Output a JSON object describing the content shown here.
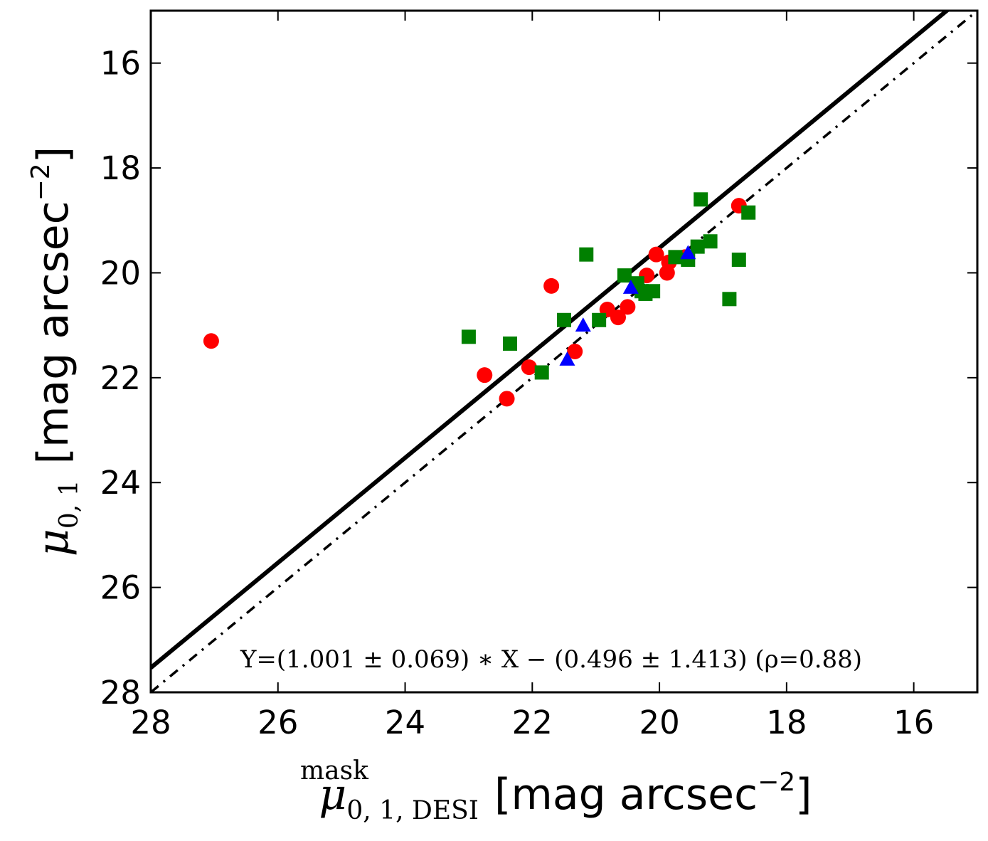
{
  "chart_data": {
    "type": "scatter",
    "xlim": [
      28,
      15
    ],
    "ylim": [
      28,
      15
    ],
    "x_inverted": true,
    "y_inverted": true,
    "x_ticks": [
      28,
      26,
      24,
      22,
      20,
      18,
      16
    ],
    "y_ticks": [
      16,
      18,
      20,
      22,
      24,
      26,
      28
    ],
    "xlabel": {
      "symbol": "μ",
      "subscript": "0, 1, DESI",
      "superscript": "mask",
      "unit_main": "[mag arcsec",
      "unit_exp": "−2",
      "unit_close": "]"
    },
    "ylabel": {
      "symbol": "μ",
      "subscript": "0, 1",
      "unit_main": "[mag arcsec",
      "unit_exp": "−2",
      "unit_close": "]"
    },
    "series": [
      {
        "marker": "circle",
        "color": "#ff0000",
        "points": [
          [
            27.05,
            21.3
          ],
          [
            22.75,
            21.95
          ],
          [
            22.4,
            22.4
          ],
          [
            22.05,
            21.8
          ],
          [
            21.7,
            20.25
          ],
          [
            21.33,
            21.5
          ],
          [
            20.82,
            20.7
          ],
          [
            20.65,
            20.85
          ],
          [
            20.5,
            20.65
          ],
          [
            20.2,
            20.05
          ],
          [
            20.05,
            19.65
          ],
          [
            19.88,
            20.0
          ],
          [
            19.85,
            19.8
          ],
          [
            19.6,
            19.7
          ],
          [
            18.75,
            18.72
          ]
        ]
      },
      {
        "marker": "square",
        "color": "#008000",
        "points": [
          [
            23.0,
            21.22
          ],
          [
            22.35,
            21.35
          ],
          [
            21.85,
            21.9
          ],
          [
            21.5,
            20.9
          ],
          [
            21.15,
            19.65
          ],
          [
            20.95,
            20.9
          ],
          [
            20.55,
            20.05
          ],
          [
            20.35,
            20.2
          ],
          [
            20.28,
            20.35
          ],
          [
            20.22,
            20.4
          ],
          [
            20.1,
            20.35
          ],
          [
            19.75,
            19.7
          ],
          [
            19.55,
            19.75
          ],
          [
            19.4,
            19.5
          ],
          [
            19.35,
            18.6
          ],
          [
            19.2,
            19.4
          ],
          [
            18.9,
            20.5
          ],
          [
            18.75,
            19.75
          ],
          [
            18.6,
            18.85
          ]
        ]
      },
      {
        "marker": "triangle",
        "color": "#0000ff",
        "points": [
          [
            21.45,
            21.65
          ],
          [
            21.2,
            21.0
          ],
          [
            20.45,
            20.28
          ],
          [
            19.55,
            19.62
          ]
        ]
      }
    ],
    "lines": [
      {
        "style": "solid",
        "color": "#000000",
        "slope": 1.001,
        "intercept": -0.496
      },
      {
        "style": "dashdot",
        "color": "#000000",
        "slope": 1.0,
        "intercept": 0.0
      }
    ],
    "annotation": "Y=(1.001 ± 0.069) ∗ X − (0.496 ± 1.413) (ρ=0.88)"
  }
}
